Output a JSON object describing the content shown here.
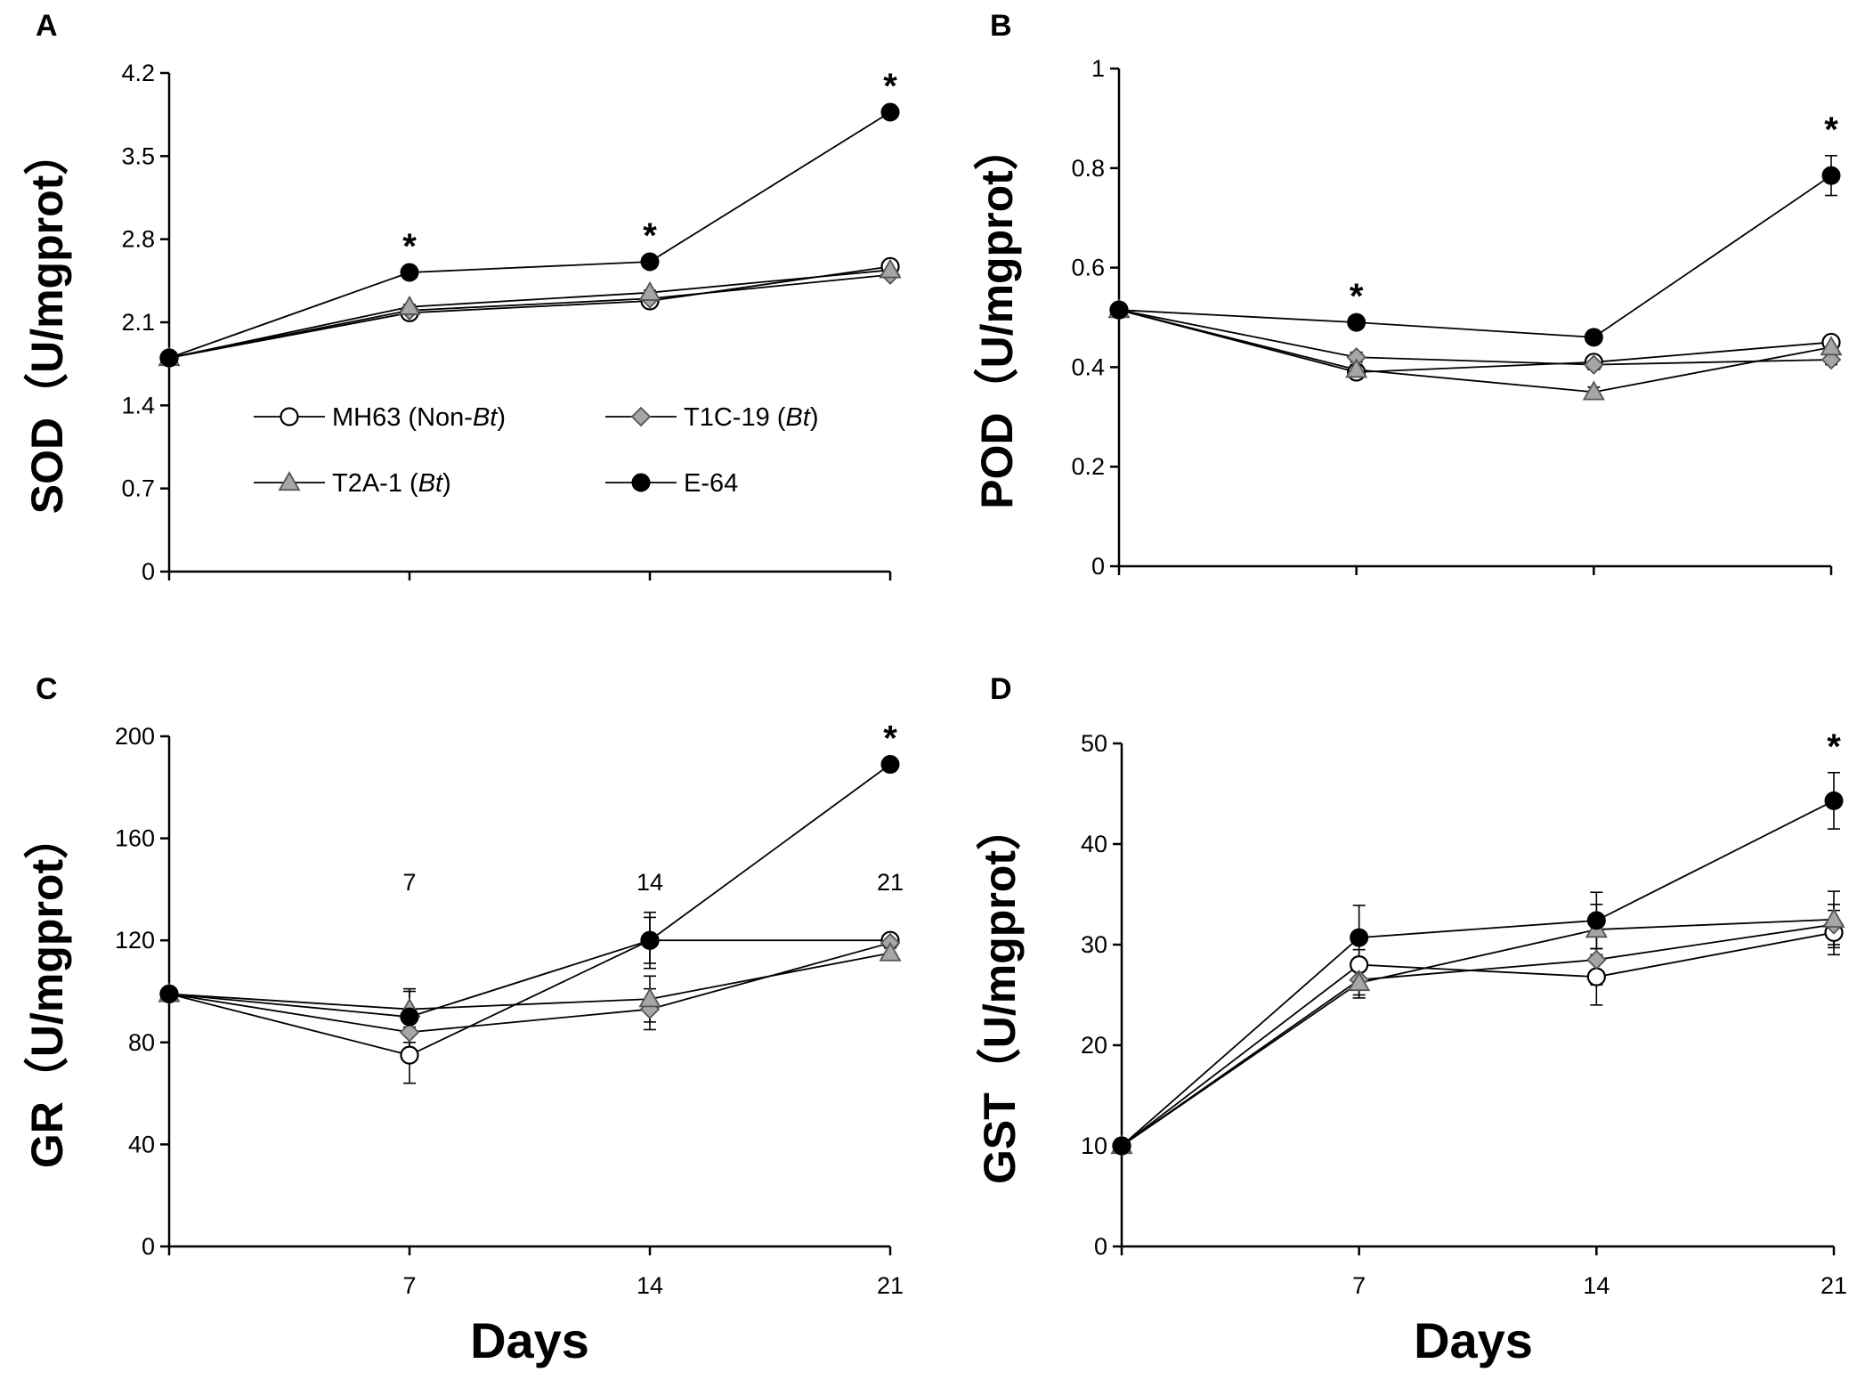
{
  "xlabel": "Days",
  "legend": [
    {
      "name": "MH63 (Non-",
      "italic": "Bt",
      "suffix": ")",
      "marker": "circle-open",
      "label": "MH63 (Non-Bt)"
    },
    {
      "name": "T1C-19 (",
      "italic": "Bt",
      "suffix": ")",
      "marker": "diamond-gray",
      "label": "T1C-19 (Bt)"
    },
    {
      "name": "T2A-1 (",
      "italic": "Bt",
      "suffix": ")",
      "marker": "triangle-gray",
      "label": "T2A-1 (Bt)"
    },
    {
      "name": "E-64",
      "italic": "",
      "suffix": "",
      "marker": "circle-filled",
      "label": "E-64"
    }
  ],
  "colors": {
    "open_fill": "#ffffff",
    "gray_fill": "#a6a6a6",
    "filled": "#000000",
    "line": "#000000"
  },
  "chart_data": [
    {
      "panel": "A",
      "type": "line",
      "ylabel": "SOD（U/mgprot）",
      "x": [
        0,
        7,
        14,
        21
      ],
      "xticks": [
        "",
        "7",
        "14",
        "21"
      ],
      "ylim": [
        0,
        4.2
      ],
      "yticks": [
        "0",
        "0.7",
        "1.4",
        "2.1",
        "2.8",
        "3.5",
        "4.2"
      ],
      "yticks_values": [
        0,
        0.7,
        1.4,
        2.1,
        2.8,
        3.5,
        4.2
      ],
      "series": [
        {
          "name": "MH63 (Non-Bt)",
          "marker": "circle-open",
          "values": [
            1.8,
            2.18,
            2.28,
            2.57
          ],
          "err": [
            0,
            0.03,
            0.03,
            0.03
          ]
        },
        {
          "name": "T1C-19 (Bt)",
          "marker": "diamond-gray",
          "values": [
            1.8,
            2.2,
            2.3,
            2.5
          ],
          "err": [
            0,
            0.02,
            0.02,
            0.02
          ]
        },
        {
          "name": "T2A-1 (Bt)",
          "marker": "triangle-gray",
          "values": [
            1.8,
            2.23,
            2.35,
            2.54
          ],
          "err": [
            0,
            0.02,
            0.02,
            0.02
          ]
        },
        {
          "name": "E-64",
          "marker": "circle-filled",
          "values": [
            1.8,
            2.52,
            2.61,
            3.87
          ],
          "err": [
            0,
            0.02,
            0.02,
            0.03
          ]
        }
      ],
      "stars": [
        {
          "x": 7,
          "y": 2.52
        },
        {
          "x": 14,
          "y": 2.61
        },
        {
          "x": 21,
          "y": 3.87
        }
      ],
      "star_symbol": "*",
      "show_legend": true
    },
    {
      "panel": "B",
      "type": "line",
      "ylabel": "POD（U/mgprot）",
      "x": [
        0,
        7,
        14,
        21
      ],
      "xticks": [
        "",
        "",
        "",
        ""
      ],
      "ylim": [
        0,
        1
      ],
      "yticks": [
        "0",
        "0.2",
        "0.4",
        "0.6",
        "0.8",
        "1"
      ],
      "yticks_values": [
        0,
        0.2,
        0.4,
        0.6,
        0.8,
        1
      ],
      "series": [
        {
          "name": "MH63 (Non-Bt)",
          "marker": "circle-open",
          "values": [
            0.515,
            0.39,
            0.41,
            0.45
          ],
          "err": [
            0,
            0.01,
            0.01,
            0.01
          ]
        },
        {
          "name": "T1C-19 (Bt)",
          "marker": "diamond-gray",
          "values": [
            0.515,
            0.42,
            0.405,
            0.415
          ],
          "err": [
            0,
            0.01,
            0.01,
            0.01
          ]
        },
        {
          "name": "T2A-1 (Bt)",
          "marker": "triangle-gray",
          "values": [
            0.515,
            0.395,
            0.35,
            0.44
          ],
          "err": [
            0,
            0.01,
            0.01,
            0.01
          ]
        },
        {
          "name": "E-64",
          "marker": "circle-filled",
          "values": [
            0.515,
            0.49,
            0.46,
            0.785
          ],
          "err": [
            0,
            0.008,
            0.008,
            0.04
          ]
        }
      ],
      "stars": [
        {
          "x": 7,
          "y": 0.49
        },
        {
          "x": 21,
          "y": 0.825
        }
      ],
      "star_symbol": "*",
      "show_legend": false
    },
    {
      "panel": "C",
      "type": "line",
      "ylabel": "GR（U/mgprot）",
      "x": [
        0,
        7,
        14,
        21
      ],
      "xticks": [
        "",
        "7",
        "14",
        "21"
      ],
      "ylim": [
        0,
        200
      ],
      "yticks": [
        "0",
        "40",
        "80",
        "120",
        "160",
        "200"
      ],
      "yticks_values": [
        0,
        40,
        80,
        120,
        160,
        200
      ],
      "series": [
        {
          "name": "MH63 (Non-Bt)",
          "marker": "circle-open",
          "values": [
            99,
            75,
            120,
            120
          ],
          "err": [
            0,
            11,
            9,
            2
          ]
        },
        {
          "name": "T1C-19 (Bt)",
          "marker": "diamond-gray",
          "values": [
            99,
            84,
            93,
            119
          ],
          "err": [
            0,
            8,
            8,
            2
          ]
        },
        {
          "name": "T2A-1 (Bt)",
          "marker": "triangle-gray",
          "values": [
            99,
            93,
            97,
            115
          ],
          "err": [
            0,
            8,
            9,
            2
          ]
        },
        {
          "name": "E-64",
          "marker": "circle-filled",
          "values": [
            99,
            90,
            120,
            189
          ],
          "err": [
            0,
            10,
            11,
            2
          ]
        }
      ],
      "stars": [
        {
          "x": 21,
          "y": 189
        }
      ],
      "star_symbol": "*",
      "show_legend": false
    },
    {
      "panel": "D",
      "type": "line",
      "ylabel": "GST（U/mgprot）",
      "x": [
        0,
        7,
        14,
        21
      ],
      "xticks": [
        "",
        "7",
        "14",
        "21"
      ],
      "ylim": [
        0,
        50
      ],
      "yticks": [
        "0",
        "10",
        "20",
        "30",
        "40",
        "50"
      ],
      "yticks_values": [
        0,
        10,
        20,
        30,
        40,
        50
      ],
      "series": [
        {
          "name": "MH63 (Non-Bt)",
          "marker": "circle-open",
          "values": [
            10,
            28,
            26.8,
            31.2
          ],
          "err": [
            0,
            1.5,
            2.8,
            2.2
          ]
        },
        {
          "name": "T1C-19 (Bt)",
          "marker": "diamond-gray",
          "values": [
            10,
            26.5,
            28.5,
            32
          ],
          "err": [
            0,
            1.5,
            2.5,
            2
          ]
        },
        {
          "name": "T2A-1 (Bt)",
          "marker": "triangle-gray",
          "values": [
            10,
            26.2,
            31.5,
            32.5
          ],
          "err": [
            0,
            1.5,
            2.5,
            2.8
          ]
        },
        {
          "name": "E-64",
          "marker": "circle-filled",
          "values": [
            10,
            30.7,
            32.4,
            44.3
          ],
          "err": [
            0,
            3.2,
            2.8,
            2.8
          ]
        }
      ],
      "stars": [
        {
          "x": 21,
          "y": 47.1
        }
      ],
      "star_symbol": "*",
      "show_legend": false
    }
  ]
}
